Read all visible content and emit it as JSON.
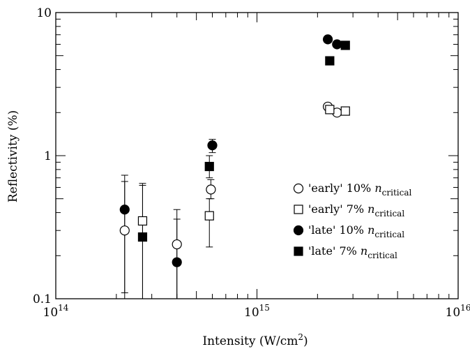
{
  "chart_data": {
    "type": "scatter",
    "xlabel_main": "Intensity (W/cm",
    "xlabel_sup": "2",
    "xlabel_tail": ")",
    "ylabel": "Reflectivity (%)",
    "xscale": "log",
    "yscale": "log",
    "xlim": [
      100000000000000.0,
      1e+16
    ],
    "ylim": [
      0.1,
      10
    ],
    "grid": false,
    "legend_position": "right-center",
    "x_ticks": [
      {
        "value": 100000000000000.0,
        "base": "10",
        "exp": "14"
      },
      {
        "value": 1000000000000000.0,
        "base": "10",
        "exp": "15"
      },
      {
        "value": 1e+16,
        "base": "10",
        "exp": "16"
      }
    ],
    "y_ticks": [
      {
        "value": 0.1,
        "label": "0.1"
      },
      {
        "value": 1,
        "label": "1"
      },
      {
        "value": 10,
        "label": "10"
      }
    ],
    "series": [
      {
        "name": "'early' 10% ",
        "name_italic": "n",
        "name_sub": "critical",
        "marker": "circle",
        "filled": false,
        "points": [
          {
            "x": 220000000000000.0,
            "y": 0.3,
            "err_low": 0.11,
            "err_high": 0.66
          },
          {
            "x": 400000000000000.0,
            "y": 0.24,
            "err_low": 0.1,
            "err_high": 0.36
          },
          {
            "x": 590000000000000.0,
            "y": 0.58,
            "err_low": 0.5,
            "err_high": 0.68
          },
          {
            "x": 2250000000000000.0,
            "y": 2.2
          },
          {
            "x": 2500000000000000.0,
            "y": 2.0
          }
        ]
      },
      {
        "name": "'early' 7% ",
        "name_italic": "n",
        "name_sub": "critical",
        "marker": "square",
        "filled": false,
        "points": [
          {
            "x": 270000000000000.0,
            "y": 0.35,
            "err_low": 0.1,
            "err_high": 0.64
          },
          {
            "x": 580000000000000.0,
            "y": 0.38,
            "err_low": 0.23,
            "err_high": 0.5
          },
          {
            "x": 2300000000000000.0,
            "y": 2.1
          },
          {
            "x": 2750000000000000.0,
            "y": 2.05
          }
        ]
      },
      {
        "name": "'late' 10% ",
        "name_italic": "n",
        "name_sub": "critical",
        "marker": "circle",
        "filled": true,
        "points": [
          {
            "x": 220000000000000.0,
            "y": 0.42,
            "err_low": 0.1,
            "err_high": 0.73
          },
          {
            "x": 400000000000000.0,
            "y": 0.18,
            "err_low": 0.1,
            "err_high": 0.42
          },
          {
            "x": 600000000000000.0,
            "y": 1.18,
            "err_low": 1.05,
            "err_high": 1.3
          },
          {
            "x": 2250000000000000.0,
            "y": 6.5
          },
          {
            "x": 2500000000000000.0,
            "y": 6.0
          }
        ]
      },
      {
        "name": "'late' 7% ",
        "name_italic": "n",
        "name_sub": "critical",
        "marker": "square",
        "filled": true,
        "points": [
          {
            "x": 270000000000000.0,
            "y": 0.27,
            "err_low": 0.1,
            "err_high": 0.62
          },
          {
            "x": 580000000000000.0,
            "y": 0.84,
            "err_low": 0.7,
            "err_high": 1.0
          },
          {
            "x": 2300000000000000.0,
            "y": 4.6
          },
          {
            "x": 2750000000000000.0,
            "y": 5.9
          }
        ]
      }
    ]
  }
}
